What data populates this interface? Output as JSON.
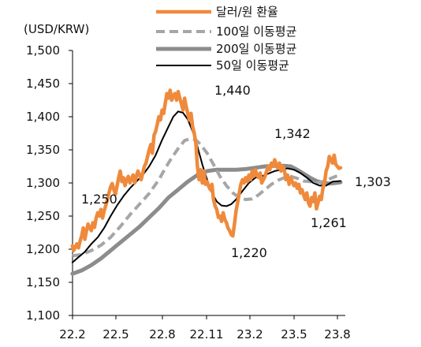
{
  "chart_data": {
    "type": "line",
    "unit_label": "(USD/KRW)",
    "ylim": [
      1100,
      1500
    ],
    "y_ticks": [
      "1,100",
      "1,150",
      "1,200",
      "1,250",
      "1,300",
      "1,350",
      "1,400",
      "1,450",
      "1,500"
    ],
    "x_ticks": [
      "22.2",
      "22.5",
      "22.8",
      "22.11",
      "23.2",
      "23.5",
      "23.8"
    ],
    "x_range": [
      2022.0833,
      2023.75
    ],
    "grid": false,
    "legend_position": "top",
    "series": [
      {
        "name": "달러/원 환율",
        "color": "#ef8a3c",
        "width": 4.5,
        "dash": "",
        "points": [
          [
            2022.083,
            1205
          ],
          [
            2022.09,
            1198
          ],
          [
            2022.1,
            1203
          ],
          [
            2022.11,
            1208
          ],
          [
            2022.12,
            1202
          ],
          [
            2022.13,
            1212
          ],
          [
            2022.14,
            1220
          ],
          [
            2022.15,
            1232
          ],
          [
            2022.16,
            1215
          ],
          [
            2022.17,
            1228
          ],
          [
            2022.18,
            1238
          ],
          [
            2022.19,
            1232
          ],
          [
            2022.2,
            1228
          ],
          [
            2022.21,
            1240
          ],
          [
            2022.22,
            1233
          ],
          [
            2022.23,
            1247
          ],
          [
            2022.24,
            1255
          ],
          [
            2022.25,
            1250
          ],
          [
            2022.26,
            1260
          ],
          [
            2022.27,
            1247
          ],
          [
            2022.28,
            1258
          ],
          [
            2022.29,
            1266
          ],
          [
            2022.3,
            1275
          ],
          [
            2022.31,
            1285
          ],
          [
            2022.32,
            1294
          ],
          [
            2022.33,
            1299
          ],
          [
            2022.34,
            1290
          ],
          [
            2022.35,
            1283
          ],
          [
            2022.36,
            1295
          ],
          [
            2022.37,
            1308
          ],
          [
            2022.38,
            1318
          ],
          [
            2022.39,
            1302
          ],
          [
            2022.4,
            1308
          ],
          [
            2022.41,
            1296
          ],
          [
            2022.42,
            1305
          ],
          [
            2022.43,
            1310
          ],
          [
            2022.44,
            1300
          ],
          [
            2022.45,
            1306
          ],
          [
            2022.46,
            1312
          ],
          [
            2022.47,
            1300
          ],
          [
            2022.48,
            1310
          ],
          [
            2022.49,
            1318
          ],
          [
            2022.5,
            1312
          ],
          [
            2022.51,
            1305
          ],
          [
            2022.52,
            1315
          ],
          [
            2022.53,
            1325
          ],
          [
            2022.54,
            1330
          ],
          [
            2022.55,
            1340
          ],
          [
            2022.56,
            1350
          ],
          [
            2022.57,
            1358
          ],
          [
            2022.58,
            1345
          ],
          [
            2022.59,
            1372
          ],
          [
            2022.6,
            1378
          ],
          [
            2022.61,
            1388
          ],
          [
            2022.62,
            1400
          ],
          [
            2022.63,
            1395
          ],
          [
            2022.64,
            1410
          ],
          [
            2022.65,
            1405
          ],
          [
            2022.66,
            1420
          ],
          [
            2022.67,
            1435
          ],
          [
            2022.68,
            1428
          ],
          [
            2022.69,
            1440
          ],
          [
            2022.7,
            1425
          ],
          [
            2022.71,
            1432
          ],
          [
            2022.72,
            1435
          ],
          [
            2022.73,
            1425
          ],
          [
            2022.74,
            1438
          ],
          [
            2022.75,
            1428
          ],
          [
            2022.76,
            1420
          ],
          [
            2022.77,
            1410
          ],
          [
            2022.78,
            1428
          ],
          [
            2022.79,
            1415
          ],
          [
            2022.8,
            1405
          ],
          [
            2022.81,
            1395
          ],
          [
            2022.82,
            1405
          ],
          [
            2022.83,
            1385
          ],
          [
            2022.84,
            1375
          ],
          [
            2022.85,
            1360
          ],
          [
            2022.86,
            1325
          ],
          [
            2022.87,
            1305
          ],
          [
            2022.88,
            1320
          ],
          [
            2022.89,
            1300
          ],
          [
            2022.9,
            1318
          ],
          [
            2022.91,
            1298
          ],
          [
            2022.92,
            1302
          ],
          [
            2022.93,
            1295
          ],
          [
            2022.94,
            1290
          ],
          [
            2022.95,
            1298
          ],
          [
            2022.96,
            1275
          ],
          [
            2022.97,
            1265
          ],
          [
            2022.98,
            1260
          ],
          [
            2022.99,
            1248
          ],
          [
            2023.0,
            1250
          ],
          [
            2023.01,
            1242
          ],
          [
            2023.02,
            1255
          ],
          [
            2023.03,
            1245
          ],
          [
            2023.04,
            1240
          ],
          [
            2023.05,
            1232
          ],
          [
            2023.06,
            1228
          ],
          [
            2023.07,
            1222
          ],
          [
            2023.08,
            1220
          ],
          [
            2023.09,
            1238
          ],
          [
            2023.1,
            1258
          ],
          [
            2023.11,
            1270
          ],
          [
            2023.12,
            1285
          ],
          [
            2023.13,
            1298
          ],
          [
            2023.14,
            1305
          ],
          [
            2023.15,
            1300
          ],
          [
            2023.16,
            1308
          ],
          [
            2023.17,
            1302
          ],
          [
            2023.18,
            1312
          ],
          [
            2023.19,
            1305
          ],
          [
            2023.2,
            1318
          ],
          [
            2023.21,
            1310
          ],
          [
            2023.22,
            1320
          ],
          [
            2023.23,
            1312
          ],
          [
            2023.24,
            1308
          ],
          [
            2023.25,
            1315
          ],
          [
            2023.26,
            1300
          ],
          [
            2023.27,
            1305
          ],
          [
            2023.28,
            1310
          ],
          [
            2023.29,
            1318
          ],
          [
            2023.3,
            1325
          ],
          [
            2023.31,
            1320
          ],
          [
            2023.32,
            1330
          ],
          [
            2023.33,
            1325
          ],
          [
            2023.34,
            1335
          ],
          [
            2023.35,
            1328
          ],
          [
            2023.36,
            1322
          ],
          [
            2023.37,
            1330
          ],
          [
            2023.38,
            1318
          ],
          [
            2023.39,
            1325
          ],
          [
            2023.4,
            1320
          ],
          [
            2023.41,
            1305
          ],
          [
            2023.42,
            1312
          ],
          [
            2023.43,
            1298
          ],
          [
            2023.44,
            1308
          ],
          [
            2023.45,
            1302
          ],
          [
            2023.46,
            1296
          ],
          [
            2023.47,
            1300
          ],
          [
            2023.48,
            1292
          ],
          [
            2023.49,
            1298
          ],
          [
            2023.5,
            1285
          ],
          [
            2023.51,
            1290
          ],
          [
            2023.52,
            1282
          ],
          [
            2023.53,
            1275
          ],
          [
            2023.54,
            1285
          ],
          [
            2023.55,
            1270
          ],
          [
            2023.56,
            1265
          ],
          [
            2023.57,
            1278
          ],
          [
            2023.58,
            1272
          ],
          [
            2023.59,
            1285
          ],
          [
            2023.6,
            1261
          ],
          [
            2023.61,
            1270
          ],
          [
            2023.62,
            1280
          ],
          [
            2023.63,
            1275
          ],
          [
            2023.64,
            1292
          ],
          [
            2023.65,
            1300
          ],
          [
            2023.66,
            1318
          ],
          [
            2023.67,
            1325
          ],
          [
            2023.68,
            1340
          ],
          [
            2023.69,
            1335
          ],
          [
            2023.7,
            1330
          ],
          [
            2023.71,
            1342
          ],
          [
            2023.72,
            1328
          ],
          [
            2023.73,
            1325
          ],
          [
            2023.74,
            1322
          ],
          [
            2023.75,
            1323
          ]
        ]
      },
      {
        "name": "100일 이동평균",
        "color": "#a6a6a6",
        "width": 4,
        "dash": "11 6",
        "points": [
          [
            2022.083,
            1190
          ],
          [
            2022.14,
            1192
          ],
          [
            2022.2,
            1198
          ],
          [
            2022.26,
            1206
          ],
          [
            2022.32,
            1218
          ],
          [
            2022.38,
            1234
          ],
          [
            2022.44,
            1252
          ],
          [
            2022.5,
            1268
          ],
          [
            2022.56,
            1284
          ],
          [
            2022.62,
            1305
          ],
          [
            2022.66,
            1322
          ],
          [
            2022.7,
            1338
          ],
          [
            2022.74,
            1352
          ],
          [
            2022.78,
            1364
          ],
          [
            2022.82,
            1367
          ],
          [
            2022.85,
            1365
          ],
          [
            2022.88,
            1358
          ],
          [
            2022.92,
            1345
          ],
          [
            2022.96,
            1328
          ],
          [
            2023.0,
            1310
          ],
          [
            2023.04,
            1296
          ],
          [
            2023.08,
            1285
          ],
          [
            2023.12,
            1278
          ],
          [
            2023.16,
            1275
          ],
          [
            2023.2,
            1276
          ],
          [
            2023.24,
            1282
          ],
          [
            2023.28,
            1290
          ],
          [
            2023.32,
            1298
          ],
          [
            2023.36,
            1304
          ],
          [
            2023.4,
            1308
          ],
          [
            2023.44,
            1310
          ],
          [
            2023.48,
            1307
          ],
          [
            2023.52,
            1303
          ],
          [
            2023.56,
            1302
          ],
          [
            2023.6,
            1300
          ],
          [
            2023.64,
            1302
          ],
          [
            2023.68,
            1306
          ],
          [
            2023.72,
            1310
          ],
          [
            2023.75,
            1311
          ]
        ]
      },
      {
        "name": "200일 이동평균",
        "color": "#8c8c8c",
        "width": 5,
        "dash": "",
        "points": [
          [
            2022.083,
            1163
          ],
          [
            2022.14,
            1168
          ],
          [
            2022.2,
            1176
          ],
          [
            2022.26,
            1186
          ],
          [
            2022.32,
            1198
          ],
          [
            2022.38,
            1210
          ],
          [
            2022.44,
            1222
          ],
          [
            2022.5,
            1234
          ],
          [
            2022.56,
            1248
          ],
          [
            2022.62,
            1262
          ],
          [
            2022.68,
            1278
          ],
          [
            2022.74,
            1290
          ],
          [
            2022.8,
            1302
          ],
          [
            2022.86,
            1312
          ],
          [
            2022.92,
            1318
          ],
          [
            2022.98,
            1320
          ],
          [
            2023.04,
            1320
          ],
          [
            2023.1,
            1320
          ],
          [
            2023.16,
            1321
          ],
          [
            2023.22,
            1323
          ],
          [
            2023.28,
            1325
          ],
          [
            2023.34,
            1326
          ],
          [
            2023.4,
            1326
          ],
          [
            2023.44,
            1325
          ],
          [
            2023.48,
            1320
          ],
          [
            2023.52,
            1314
          ],
          [
            2023.56,
            1308
          ],
          [
            2023.6,
            1303
          ],
          [
            2023.64,
            1300
          ],
          [
            2023.68,
            1299
          ],
          [
            2023.72,
            1300
          ],
          [
            2023.75,
            1301
          ]
        ]
      },
      {
        "name": "50일 이동평균",
        "color": "#000000",
        "width": 2,
        "dash": "",
        "points": [
          [
            2022.083,
            1180
          ],
          [
            2022.12,
            1188
          ],
          [
            2022.16,
            1196
          ],
          [
            2022.2,
            1208
          ],
          [
            2022.24,
            1218
          ],
          [
            2022.28,
            1232
          ],
          [
            2022.32,
            1250
          ],
          [
            2022.36,
            1266
          ],
          [
            2022.4,
            1280
          ],
          [
            2022.44,
            1292
          ],
          [
            2022.48,
            1302
          ],
          [
            2022.52,
            1312
          ],
          [
            2022.56,
            1325
          ],
          [
            2022.6,
            1342
          ],
          [
            2022.64,
            1365
          ],
          [
            2022.68,
            1385
          ],
          [
            2022.71,
            1400
          ],
          [
            2022.74,
            1408
          ],
          [
            2022.77,
            1406
          ],
          [
            2022.8,
            1396
          ],
          [
            2022.83,
            1378
          ],
          [
            2022.86,
            1355
          ],
          [
            2022.89,
            1328
          ],
          [
            2022.92,
            1305
          ],
          [
            2022.95,
            1285
          ],
          [
            2022.98,
            1272
          ],
          [
            2023.01,
            1266
          ],
          [
            2023.04,
            1265
          ],
          [
            2023.07,
            1268
          ],
          [
            2023.1,
            1275
          ],
          [
            2023.14,
            1288
          ],
          [
            2023.18,
            1300
          ],
          [
            2023.22,
            1308
          ],
          [
            2023.26,
            1310
          ],
          [
            2023.3,
            1314
          ],
          [
            2023.34,
            1318
          ],
          [
            2023.38,
            1320
          ],
          [
            2023.42,
            1322
          ],
          [
            2023.46,
            1320
          ],
          [
            2023.5,
            1315
          ],
          [
            2023.54,
            1308
          ],
          [
            2023.58,
            1300
          ],
          [
            2023.62,
            1296
          ],
          [
            2023.66,
            1296
          ],
          [
            2023.7,
            1302
          ],
          [
            2023.75,
            1303
          ]
        ]
      }
    ],
    "annotations": [
      {
        "text": "1,440",
        "x": 2022.73,
        "y": 1440
      },
      {
        "text": "1,250",
        "x": 2022.18,
        "y": 1250
      },
      {
        "text": "1,342",
        "x": 2023.36,
        "y": 1342
      },
      {
        "text": "1,220",
        "x": 2023.08,
        "y": 1220
      },
      {
        "text": "1,261",
        "x": 2023.57,
        "y": 1261
      },
      {
        "text": "1,303",
        "x": 2023.82,
        "y": 1303
      }
    ]
  }
}
